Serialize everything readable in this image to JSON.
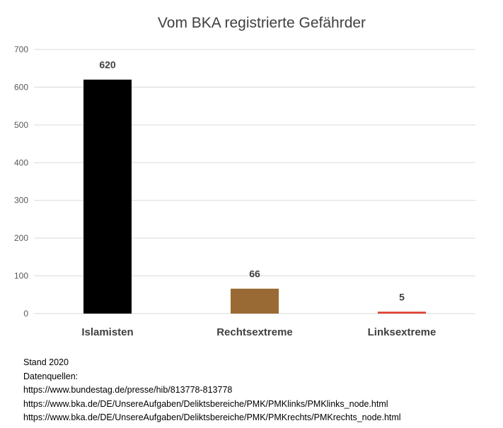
{
  "chart_data": {
    "type": "bar",
    "title": "Vom BKA registrierte Gefährder",
    "categories": [
      "Islamisten",
      "Rechtsextreme",
      "Linksextreme"
    ],
    "values": [
      620,
      66,
      5
    ],
    "data_labels": [
      "620",
      "66",
      "5"
    ],
    "colors": [
      "#000000",
      "#9a6a34",
      "#e03c31"
    ],
    "ylim": [
      0,
      700
    ],
    "yticks": [
      0,
      100,
      200,
      300,
      400,
      500,
      600,
      700
    ],
    "grid": true,
    "legend": "none"
  },
  "notes": {
    "stand": "Stand 2020",
    "sources_label": "Datenquellen:",
    "sources": [
      "https://www.bundestag.de/presse/hib/813778-813778",
      "https://www.bka.de/DE/UnsereAufgaben/Deliktsbereiche/PMK/PMKlinks/PMKlinks_node.html",
      "https://www.bka.de/DE/UnsereAufgaben/Deliktsbereiche/PMK/PMKrechts/PMKrechts_node.html"
    ]
  }
}
